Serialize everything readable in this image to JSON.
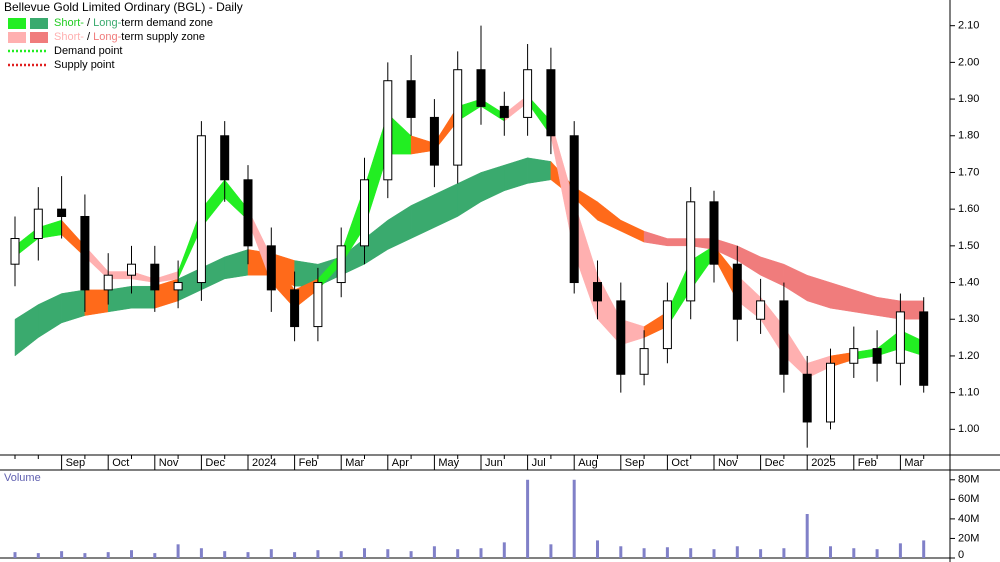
{
  "chart_data": [
    {
      "type": "candlestick",
      "title": "Bellevue Gold Limited Ordinary (BGL) - Daily",
      "categories": [
        null,
        null,
        "Sep",
        null,
        "Oct",
        null,
        "Nov",
        null,
        "Dec",
        null,
        "2024",
        null,
        "Feb",
        null,
        "Mar",
        null,
        "Apr",
        null,
        "May",
        null,
        "Jun",
        null,
        "Jul",
        null,
        "Aug",
        null,
        "Sep",
        null,
        "Oct",
        null,
        "Nov",
        null,
        "Dec",
        null,
        "2025",
        null,
        "Feb",
        null,
        "Mar",
        null
      ],
      "open": [
        1.45,
        1.52,
        1.6,
        1.58,
        1.38,
        1.42,
        1.45,
        1.38,
        1.4,
        1.8,
        1.68,
        1.5,
        1.38,
        1.28,
        1.4,
        1.5,
        1.68,
        1.95,
        1.85,
        1.72,
        1.98,
        1.88,
        1.85,
        1.98,
        1.8,
        1.4,
        1.35,
        1.15,
        1.22,
        1.35,
        1.62,
        1.45,
        1.3,
        1.35,
        1.15,
        1.02,
        1.18,
        1.22,
        1.18,
        1.32
      ],
      "high": [
        1.58,
        1.66,
        1.69,
        1.64,
        1.48,
        1.5,
        1.5,
        1.46,
        1.84,
        1.84,
        1.72,
        1.55,
        1.43,
        1.44,
        1.55,
        1.74,
        2.0,
        2.02,
        1.9,
        2.03,
        2.1,
        1.92,
        2.05,
        2.04,
        1.84,
        1.46,
        1.4,
        1.27,
        1.4,
        1.66,
        1.65,
        1.5,
        1.41,
        1.4,
        1.2,
        1.22,
        1.28,
        1.27,
        1.37,
        1.36
      ],
      "low": [
        1.39,
        1.46,
        1.52,
        1.32,
        1.34,
        1.37,
        1.32,
        1.33,
        1.35,
        1.62,
        1.45,
        1.32,
        1.24,
        1.24,
        1.36,
        1.45,
        1.63,
        1.8,
        1.66,
        1.67,
        1.83,
        1.8,
        1.8,
        1.75,
        1.37,
        1.3,
        1.1,
        1.12,
        1.18,
        1.3,
        1.4,
        1.24,
        1.26,
        1.1,
        0.95,
        1.0,
        1.14,
        1.13,
        1.12,
        1.1
      ],
      "close": [
        1.52,
        1.6,
        1.58,
        1.38,
        1.42,
        1.45,
        1.38,
        1.4,
        1.8,
        1.68,
        1.5,
        1.38,
        1.28,
        1.4,
        1.5,
        1.68,
        1.95,
        1.85,
        1.72,
        1.98,
        1.88,
        1.85,
        1.98,
        1.8,
        1.4,
        1.35,
        1.15,
        1.22,
        1.35,
        1.62,
        1.45,
        1.3,
        1.35,
        1.15,
        1.02,
        1.18,
        1.22,
        1.18,
        1.32,
        1.12
      ],
      "bands": [
        {
          "upper": [
            1.3,
            1.34,
            1.37,
            1.38,
            1.38,
            1.39,
            1.39,
            1.41,
            1.44,
            1.47,
            1.49,
            1.48,
            1.46,
            1.45,
            1.47,
            1.52,
            1.57,
            1.61,
            1.64,
            1.67,
            1.7,
            1.72,
            1.74,
            1.73,
            1.66,
            1.62,
            1.57,
            1.54,
            1.52,
            1.52,
            1.52,
            1.5,
            1.47,
            1.45,
            1.42,
            1.4,
            1.38,
            1.36,
            1.35,
            1.35
          ],
          "lower": [
            1.2,
            1.25,
            1.29,
            1.31,
            1.32,
            1.33,
            1.33,
            1.35,
            1.38,
            1.41,
            1.42,
            1.42,
            1.39,
            1.39,
            1.42,
            1.45,
            1.49,
            1.52,
            1.55,
            1.58,
            1.62,
            1.65,
            1.67,
            1.68,
            1.63,
            1.57,
            1.54,
            1.51,
            1.5,
            1.5,
            1.49,
            1.46,
            1.42,
            1.39,
            1.35,
            1.33,
            1.32,
            1.31,
            1.3,
            1.3
          ],
          "colors": [
            "#3aaa6e",
            "#3aaa6e",
            "#3aaa6e",
            "#ff6a1a",
            "#3aaa6e",
            "#3aaa6e",
            "#ff6a1a",
            "#3aaa6e",
            "#3aaa6e",
            "#3aaa6e",
            "#ff6a1a",
            "#ff6a1a",
            "#3aaa6e",
            "#3aaa6e",
            "#3aaa6e",
            "#3aaa6e",
            "#3aaa6e",
            "#3aaa6e",
            "#3aaa6e",
            "#3aaa6e",
            "#3aaa6e",
            "#3aaa6e",
            "#3aaa6e",
            "#ff6a1a",
            "#ff6a1a",
            "#ff6a1a",
            "#ff6a1a",
            "#f07c7c",
            "#f07c7c",
            "#f07c7c",
            "#f07c7c",
            "#f07c7c",
            "#f07c7c",
            "#f07c7c",
            "#f07c7c",
            "#f07c7c",
            "#f07c7c",
            "#f07c7c",
            "#f07c7c"
          ]
        },
        {
          "upper": [
            1.5,
            1.55,
            1.57,
            1.5,
            1.43,
            1.43,
            1.41,
            1.43,
            1.6,
            1.68,
            1.6,
            1.47,
            1.38,
            1.41,
            1.48,
            1.66,
            1.86,
            1.8,
            1.78,
            1.88,
            1.9,
            1.86,
            1.91,
            1.84,
            1.62,
            1.42,
            1.3,
            1.28,
            1.32,
            1.46,
            1.5,
            1.42,
            1.36,
            1.28,
            1.18,
            1.2,
            1.21,
            1.22,
            1.27,
            1.24
          ],
          "lower": [
            1.47,
            1.52,
            1.53,
            1.47,
            1.41,
            1.41,
            1.4,
            1.41,
            1.55,
            1.63,
            1.57,
            1.4,
            1.33,
            1.38,
            1.45,
            1.55,
            1.75,
            1.75,
            1.76,
            1.84,
            1.88,
            1.84,
            1.89,
            1.8,
            1.48,
            1.3,
            1.23,
            1.25,
            1.28,
            1.38,
            1.47,
            1.35,
            1.3,
            1.2,
            1.14,
            1.17,
            1.19,
            1.2,
            1.22,
            1.2
          ],
          "colors": [
            "#22ee22",
            "#22ee22",
            "#ff6a1a",
            "#ffb0b0",
            "#ffb0b0",
            "#ffb0b0",
            "#ffb0b0",
            "#22ee22",
            "#22ee22",
            "#22ee22",
            "#ffb0b0",
            "#ff6a1a",
            "#ff6a1a",
            "#22ee22",
            "#22ee22",
            "#22ee22",
            "#22ee22",
            "#ff6a1a",
            "#ff6a1a",
            "#22ee22",
            "#22ee22",
            "#ffb0b0",
            "#22ee22",
            "#ffb0b0",
            "#ffb0b0",
            "#ffb0b0",
            "#ffb0b0",
            "#ff6a1a",
            "#22ee22",
            "#22ee22",
            "#ff6a1a",
            "#ffb0b0",
            "#ffb0b0",
            "#ffb0b0",
            "#ffb0b0",
            "#ff6a1a",
            "#22ee22",
            "#22ee22",
            "#22ee22"
          ]
        }
      ],
      "legend": [
        {
          "swatches": [
            "#22ee22",
            "#3aaa6e"
          ],
          "parts": [
            {
              "text": "Short-",
              "color": "#22cc22"
            },
            {
              "text": " / "
            },
            {
              "text": "Long-",
              "color": "#3aaa6e"
            },
            {
              "text": "term demand zone"
            }
          ]
        },
        {
          "swatches": [
            "#ffb0b0",
            "#f07c7c"
          ],
          "parts": [
            {
              "text": "Short-",
              "color": "#ffb0b0"
            },
            {
              "text": " / "
            },
            {
              "text": "Long-",
              "color": "#f07c7c"
            },
            {
              "text": "term supply zone"
            }
          ]
        },
        {
          "dash": "#22ee22",
          "parts": [
            {
              "text": "Demand point"
            }
          ]
        },
        {
          "dash": "#e02020",
          "parts": [
            {
              "text": "Supply point"
            }
          ]
        }
      ],
      "ylim": [
        0.93,
        2.17
      ],
      "yticks": [
        {
          "value": 1.0,
          "label": "1.00"
        },
        {
          "value": 1.1,
          "label": "1.10"
        },
        {
          "value": 1.2,
          "label": "1.20"
        },
        {
          "value": 1.3,
          "label": "1.30"
        },
        {
          "value": 1.4,
          "label": "1.40"
        },
        {
          "value": 1.5,
          "label": "1.50"
        },
        {
          "value": 1.6,
          "label": "1.60"
        },
        {
          "value": 1.7,
          "label": "1.70"
        },
        {
          "value": 1.8,
          "label": "1.80"
        },
        {
          "value": 1.9,
          "label": "1.90"
        },
        {
          "value": 2.0,
          "label": "2.00"
        },
        {
          "value": 2.1,
          "label": "2.10"
        }
      ]
    },
    {
      "type": "bar",
      "title": "Volume",
      "color": "#8080c8",
      "values": [
        6000000,
        5000000,
        7000000,
        5000000,
        6000000,
        8000000,
        5000000,
        14000000,
        10000000,
        7000000,
        6000000,
        9000000,
        6000000,
        8000000,
        7000000,
        10000000,
        9000000,
        7000000,
        12000000,
        9000000,
        10000000,
        16000000,
        80000000,
        14000000,
        80000000,
        18000000,
        12000000,
        10000000,
        11000000,
        10000000,
        9000000,
        12000000,
        9000000,
        10000000,
        45000000,
        12000000,
        10000000,
        9000000,
        15000000,
        18000000
      ],
      "ylim": [
        0,
        90000000
      ],
      "yticks": [
        0,
        {
          "value": 20000000,
          "label": "20M"
        },
        {
          "value": 40000000,
          "label": "40M"
        },
        {
          "value": 60000000,
          "label": "60M"
        },
        {
          "value": 80000000,
          "label": "80M"
        }
      ]
    }
  ]
}
